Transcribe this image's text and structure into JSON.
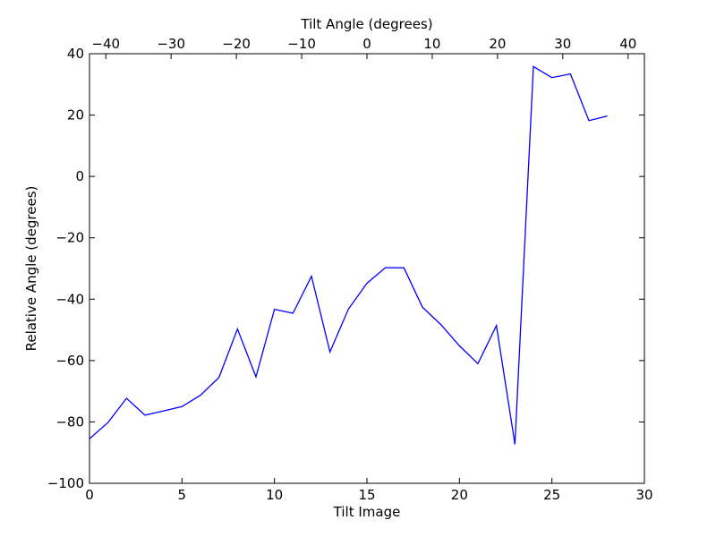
{
  "chart_data": {
    "type": "line",
    "xlabel": "Tilt Image",
    "ylabel": "Relative Angle (degrees)",
    "top_xlabel": "Tilt Angle (degrees)",
    "xlim": [
      0,
      30
    ],
    "ylim": [
      -100,
      40
    ],
    "top_xlim": [
      -42.5,
      42.5
    ],
    "xticks": [
      0,
      5,
      10,
      15,
      20,
      25,
      30
    ],
    "yticks": [
      -100,
      -80,
      -60,
      -40,
      -20,
      0,
      20,
      40
    ],
    "top_xticks": [
      -40,
      -30,
      -20,
      -10,
      0,
      10,
      20,
      30,
      40
    ],
    "grid": false,
    "series": [
      {
        "color": "#0000ff",
        "x": [
          0,
          1,
          2,
          3,
          4,
          5,
          6,
          7,
          8,
          9,
          10,
          11,
          12,
          13,
          14,
          15,
          16,
          17,
          18,
          19,
          20,
          21,
          22,
          23,
          24,
          25,
          26,
          27,
          28
        ],
        "y": [
          -85.5,
          -80.2,
          -72.3,
          -77.8,
          -76.4,
          -75.0,
          -71.3,
          -65.5,
          -49.7,
          -65.3,
          -43.3,
          -44.6,
          -32.5,
          -57.2,
          -43.2,
          -34.8,
          -29.7,
          -29.8,
          -42.6,
          -48.3,
          -55.2,
          -61.0,
          -48.6,
          -87.3,
          35.8,
          32.2,
          33.4,
          18.2,
          19.7
        ]
      }
    ]
  }
}
